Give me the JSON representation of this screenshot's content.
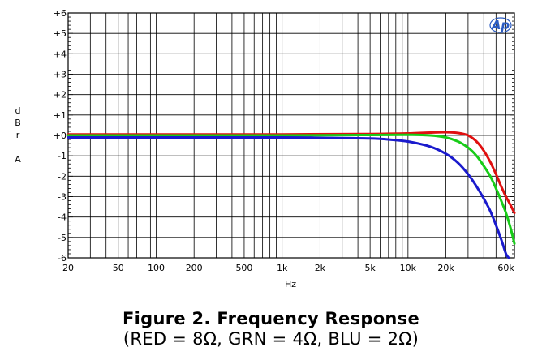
{
  "chart_data": {
    "type": "line",
    "xscale": "log",
    "xlim": [
      20,
      70000
    ],
    "ylim": [
      -6,
      6
    ],
    "xlabel": "Hz",
    "ylabel_letters": [
      "d",
      "B",
      "r",
      "A"
    ],
    "grid": true,
    "logo": "Ap",
    "x_ticks": [
      {
        "value": 20,
        "label": "20"
      },
      {
        "value": 50,
        "label": "50"
      },
      {
        "value": 100,
        "label": "100"
      },
      {
        "value": 200,
        "label": "200"
      },
      {
        "value": 500,
        "label": "500"
      },
      {
        "value": 1000,
        "label": "1k"
      },
      {
        "value": 2000,
        "label": "2k"
      },
      {
        "value": 5000,
        "label": "5k"
      },
      {
        "value": 10000,
        "label": "10k"
      },
      {
        "value": 20000,
        "label": "20k"
      },
      {
        "value": 60000,
        "label": "60k"
      }
    ],
    "y_ticks": [
      {
        "value": 6,
        "label": "+6"
      },
      {
        "value": 5,
        "label": "+5"
      },
      {
        "value": 4,
        "label": "+4"
      },
      {
        "value": 3,
        "label": "+3"
      },
      {
        "value": 2,
        "label": "+2"
      },
      {
        "value": 1,
        "label": "+1"
      },
      {
        "value": 0,
        "label": "+0"
      },
      {
        "value": -1,
        "label": "-1"
      },
      {
        "value": -2,
        "label": "-2"
      },
      {
        "value": -3,
        "label": "-3"
      },
      {
        "value": -4,
        "label": "-4"
      },
      {
        "value": -5,
        "label": "-5"
      },
      {
        "value": -6,
        "label": "-6"
      }
    ],
    "series": [
      {
        "color": "#e01010",
        "x": [
          20,
          1000,
          5000,
          10000,
          15000,
          20000,
          25000,
          30000,
          35000,
          40000,
          45000,
          50000,
          55000,
          60000,
          65000,
          70000
        ],
        "y": [
          0.05,
          0.05,
          0.07,
          0.1,
          0.14,
          0.16,
          0.12,
          0.0,
          -0.3,
          -0.75,
          -1.3,
          -1.9,
          -2.5,
          -3.0,
          -3.4,
          -3.8
        ]
      },
      {
        "color": "#18cc18",
        "x": [
          20,
          1000,
          5000,
          10000,
          15000,
          20000,
          25000,
          30000,
          35000,
          40000,
          45000,
          50000,
          55000,
          60000,
          65000,
          70000
        ],
        "y": [
          0.0,
          0.0,
          0.02,
          0.03,
          0.0,
          -0.1,
          -0.3,
          -0.6,
          -1.0,
          -1.5,
          -2.0,
          -2.6,
          -3.2,
          -3.8,
          -4.5,
          -5.3
        ]
      },
      {
        "color": "#1a1acc",
        "x": [
          20,
          1000,
          2000,
          5000,
          7000,
          10000,
          15000,
          20000,
          25000,
          30000,
          35000,
          40000,
          45000,
          50000,
          55000,
          60000,
          63000
        ],
        "y": [
          -0.1,
          -0.1,
          -0.12,
          -0.15,
          -0.2,
          -0.3,
          -0.55,
          -0.9,
          -1.35,
          -1.9,
          -2.5,
          -3.1,
          -3.7,
          -4.4,
          -5.1,
          -5.8,
          -6.0
        ]
      }
    ]
  },
  "caption": {
    "title": "Figure 2. Frequency Response",
    "subtitle": "(RED = 8Ω, GRN = 4Ω, BLU = 2Ω)"
  }
}
